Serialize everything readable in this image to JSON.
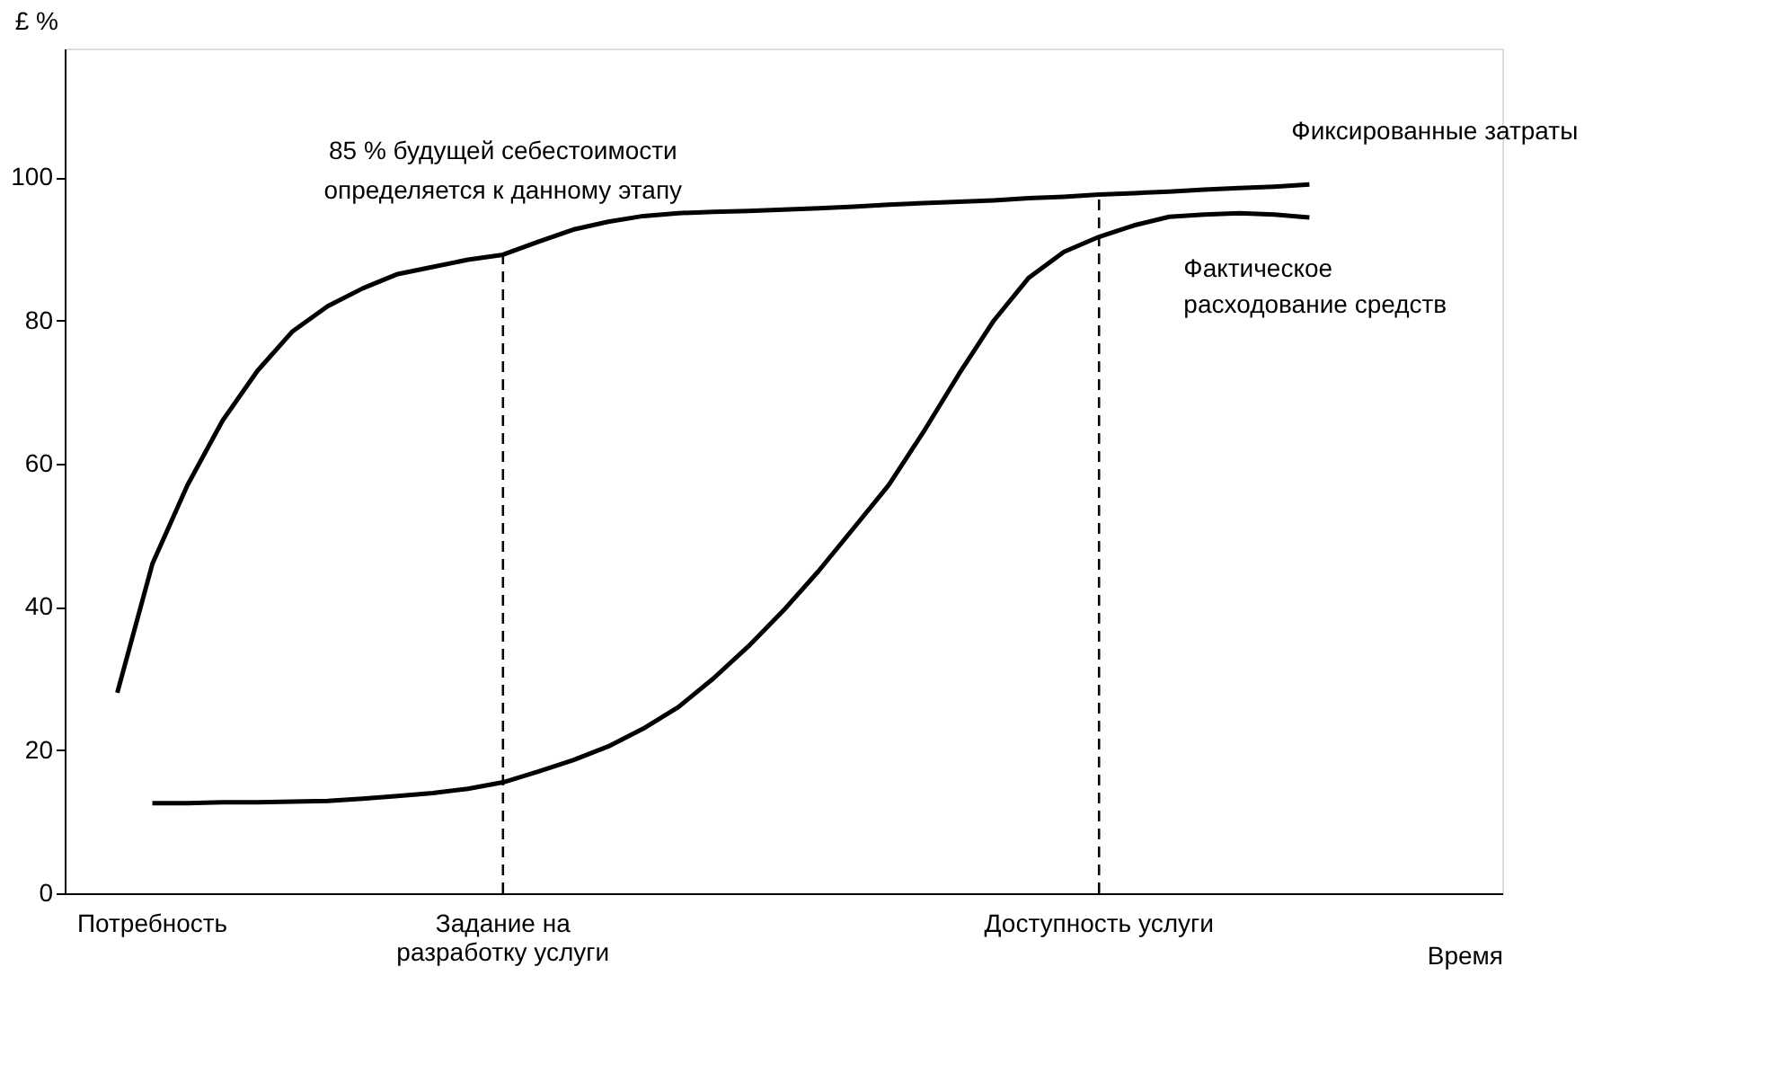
{
  "chart_data": {
    "type": "line",
    "xlabel": "Время",
    "ylabel": "£ %",
    "categories": [
      null,
      null,
      "Потребность",
      null,
      null,
      null,
      null,
      null,
      null,
      null,
      null,
      null,
      "Задание на\nразработку услуги",
      null,
      null,
      null,
      null,
      null,
      null,
      null,
      null,
      null,
      null,
      null,
      null,
      null,
      null,
      null,
      null,
      "Доступность услуги",
      null,
      null,
      null,
      null,
      null,
      null,
      null,
      null,
      null,
      null,
      null
    ],
    "ylim": [
      0,
      118
    ],
    "yticks": [
      0,
      20,
      40,
      60,
      80,
      100
    ],
    "grid": false,
    "marker": "none",
    "series": [
      {
        "name": "Фиксированные затраты",
        "color": "#000000",
        "line_style": "solid",
        "values": [
          null,
          28,
          46,
          57,
          66,
          73,
          78.5,
          82,
          84.5,
          86.5,
          87.5,
          88.5,
          89.2,
          91,
          92.7,
          93.8,
          94.6,
          95,
          95.2,
          95.3,
          95.5,
          95.7,
          95.9,
          96.2,
          96.4,
          96.6,
          96.8,
          97.1,
          97.3,
          97.6,
          97.8,
          98,
          98.3,
          98.5,
          98.7,
          99,
          null,
          null,
          null,
          null,
          null
        ]
      },
      {
        "name": "Фактическое\nрасходование средств",
        "color": "#000000",
        "line_style": "solid",
        "values": [
          null,
          null,
          12.6,
          12.6,
          12.7,
          12.7,
          12.8,
          12.9,
          13.2,
          13.6,
          14,
          14.6,
          15.5,
          17,
          18.6,
          20.5,
          23,
          26,
          30,
          34.5,
          39.5,
          45,
          51,
          57,
          64.5,
          72.5,
          80,
          86,
          89.6,
          91.7,
          93.3,
          94.5,
          94.8,
          95,
          94.8,
          94.4,
          null,
          null,
          null,
          null,
          null
        ]
      }
    ],
    "ref_lines": [
      {
        "axis": "x",
        "value": "Задание на\nразработку услуги",
        "color": "#000000",
        "line_style": "dashed"
      },
      {
        "axis": "x",
        "value": "Доступность услуги",
        "color": "#000000",
        "line_style": "dashed"
      }
    ],
    "annotations": [
      {
        "text": "85 % будущей себестоимости\nопределяется к данному этапу",
        "x": "Задание на\nразработку услуги",
        "y": 89.2
      }
    ]
  }
}
